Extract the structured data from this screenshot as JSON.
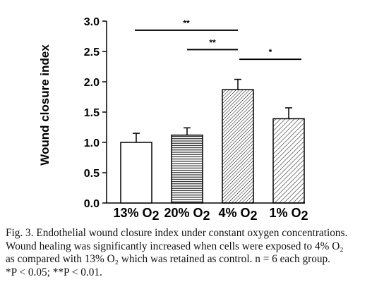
{
  "chart_data": {
    "type": "bar",
    "ylabel": "Wound closure index",
    "xlabel": "",
    "ylim": [
      0,
      3.0
    ],
    "yticks": [
      "0.0",
      "0.5",
      "1.0",
      "1.5",
      "2.0",
      "2.5",
      "3.0"
    ],
    "categories": [
      {
        "label": "13% O",
        "sub": "2"
      },
      {
        "label": "20% O",
        "sub": "2"
      },
      {
        "label": "4% O",
        "sub": "2"
      },
      {
        "label": "1% O",
        "sub": "2"
      }
    ],
    "values": [
      1.0,
      1.12,
      1.87,
      1.39
    ],
    "errors": [
      0.15,
      0.12,
      0.17,
      0.18
    ],
    "fills": [
      "none",
      "horizontal-lines",
      "diagonal-dense",
      "diagonal-sparse"
    ],
    "significance": [
      {
        "from": 0,
        "to": 2,
        "label": "**",
        "y": 2.85
      },
      {
        "from": 1,
        "to": 2,
        "label": "**",
        "y": 2.53
      },
      {
        "from": 2,
        "to": 3,
        "label": "*",
        "y": 2.37
      }
    ],
    "grid": false
  },
  "caption": {
    "lines": [
      "Fig. 3. Endothelial wound closure index under constant oxygen concentrations.",
      "Wound healing was significantly increased when cells were exposed to 4% O₂",
      "as compared with 13% O₂ which was retained as control. n = 6 each group.",
      "*P < 0.05; **P < 0.01."
    ]
  }
}
